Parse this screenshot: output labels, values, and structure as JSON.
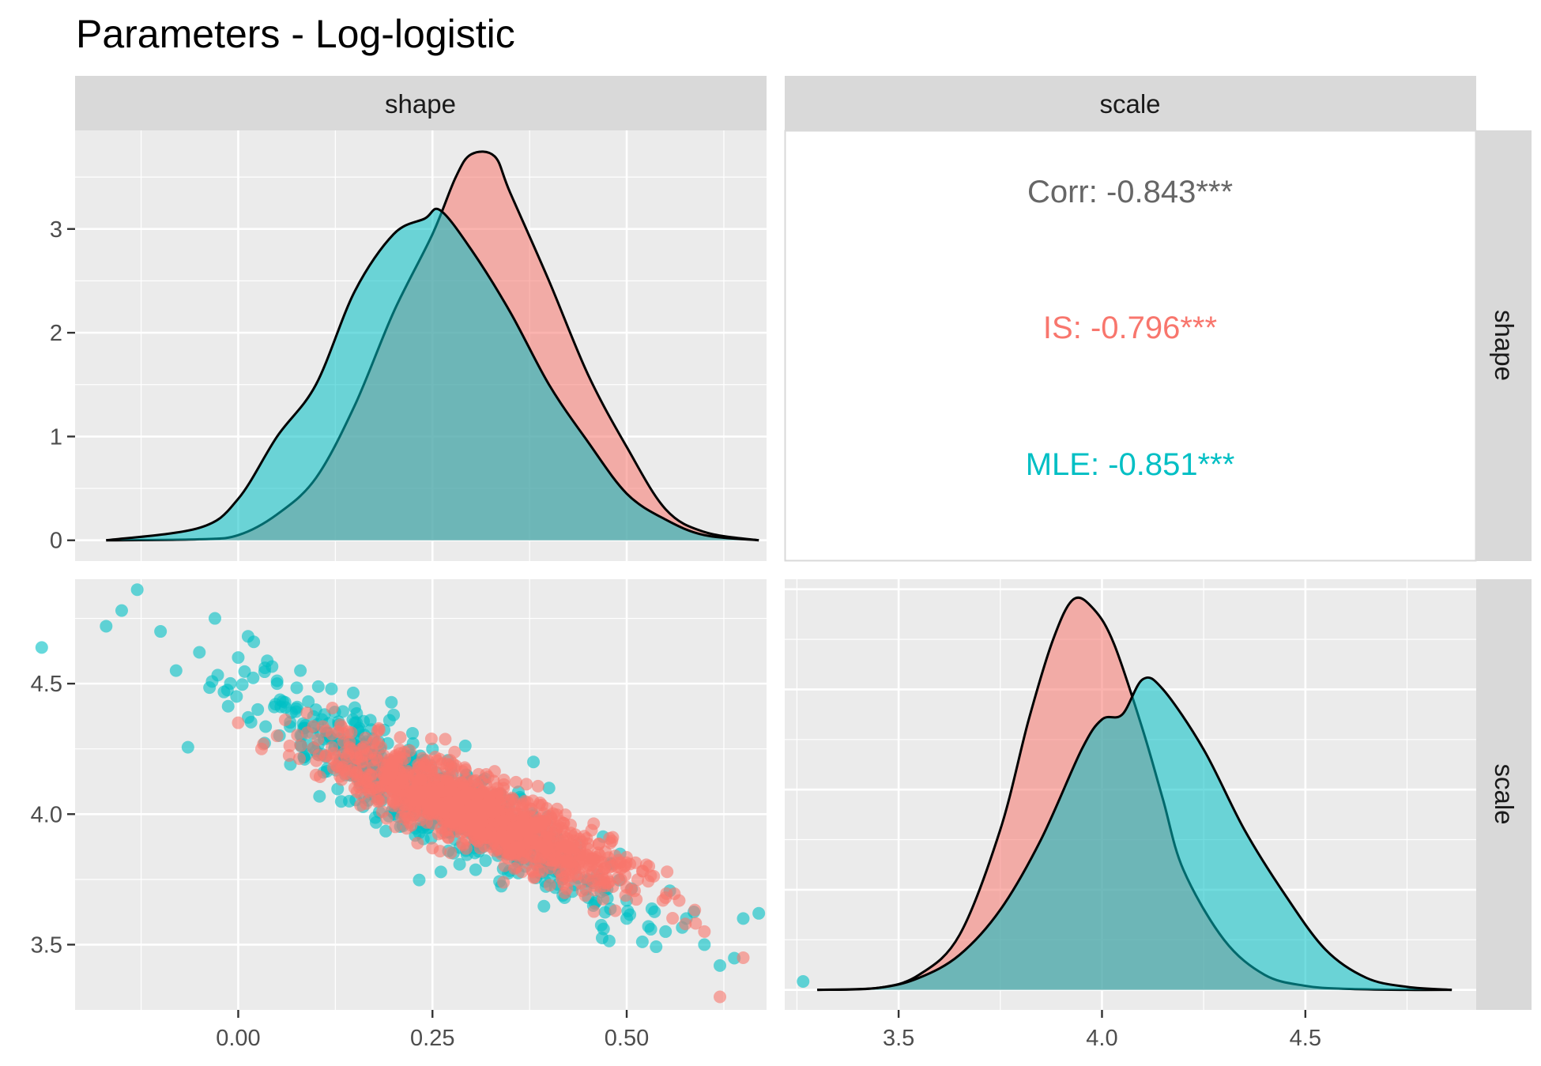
{
  "chart_data": {
    "type": "scatter",
    "title": "Parameters - Log-logistic",
    "variables": [
      "shape",
      "scale"
    ],
    "series": [
      {
        "name": "IS",
        "color": "#F8766D"
      },
      {
        "name": "MLE",
        "color": "#00BFC4"
      }
    ],
    "panels": {
      "shape_density": {
        "type": "area",
        "xlim": [
          -0.21,
          0.68
        ],
        "ylim": [
          -0.2,
          3.95
        ],
        "x_ticks": [
          0.0,
          0.25,
          0.5
        ],
        "x_tick_labels": [
          "0.00",
          "0.25",
          "0.50"
        ],
        "y_ticks": [
          0,
          1,
          2,
          3
        ],
        "y_tick_labels": [
          "0",
          "1",
          "2",
          "3"
        ],
        "series": [
          {
            "name": "IS",
            "x": [
              -0.17,
              -0.05,
              0.0,
              0.05,
              0.1,
              0.15,
              0.2,
              0.25,
              0.28,
              0.3,
              0.33,
              0.35,
              0.4,
              0.45,
              0.5,
              0.55,
              0.6,
              0.67
            ],
            "y": [
              0.0,
              0.01,
              0.05,
              0.25,
              0.6,
              1.3,
              2.2,
              2.95,
              3.5,
              3.72,
              3.7,
              3.35,
              2.5,
              1.6,
              0.9,
              0.3,
              0.08,
              0.0
            ]
          },
          {
            "name": "MLE",
            "x": [
              -0.17,
              -0.05,
              0.0,
              0.05,
              0.1,
              0.15,
              0.2,
              0.24,
              0.26,
              0.3,
              0.35,
              0.4,
              0.45,
              0.5,
              0.55,
              0.6,
              0.67
            ],
            "y": [
              0.0,
              0.12,
              0.4,
              1.0,
              1.5,
              2.4,
              2.95,
              3.1,
              3.18,
              2.8,
              2.2,
              1.5,
              0.95,
              0.45,
              0.2,
              0.05,
              0.0
            ]
          }
        ]
      },
      "correlation": {
        "labels": [
          {
            "name": "Corr",
            "text": "Corr: -0.843***",
            "color": "#666666"
          },
          {
            "name": "IS",
            "text": "IS: -0.796***",
            "color": "#F8766D"
          },
          {
            "name": "MLE",
            "text": "MLE: -0.851***",
            "color": "#00BFC4"
          }
        ]
      },
      "scatter": {
        "xlim": [
          -0.21,
          0.68
        ],
        "ylim": [
          3.25,
          4.9
        ],
        "x_ticks": [
          0.0,
          0.25,
          0.5
        ],
        "x_tick_labels": [
          "0.00",
          "0.25",
          "0.50"
        ],
        "y_ticks": [
          3.5,
          4.0,
          4.5
        ],
        "y_tick_labels": [
          "3.5",
          "4.0",
          "4.5"
        ],
        "trend": {
          "IS": {
            "x_mean": 0.31,
            "y_mean": 4.0,
            "slope": -1.25
          },
          "MLE": {
            "x_mean": 0.26,
            "y_mean": 4.05,
            "slope": -1.55
          }
        },
        "series": [
          {
            "name": "MLE",
            "x": [
              -0.17,
              -0.15,
              -0.13,
              -0.1,
              -0.08,
              -0.05,
              -0.03,
              0.0,
              0.02,
              0.05,
              0.08,
              0.1,
              0.12,
              0.15,
              0.18,
              0.2,
              0.22,
              0.25,
              0.3,
              0.35,
              0.38,
              0.4,
              0.45,
              0.5,
              0.55,
              0.6,
              0.62,
              0.65,
              0.67
            ],
            "y": [
              4.72,
              4.78,
              4.86,
              4.7,
              4.55,
              4.62,
              4.75,
              4.6,
              4.66,
              4.5,
              4.55,
              4.4,
              4.48,
              4.35,
              4.2,
              4.38,
              4.1,
              4.25,
              4.05,
              3.95,
              4.2,
              4.1,
              3.75,
              3.6,
              3.55,
              3.5,
              3.42,
              3.6,
              3.62
            ]
          },
          {
            "name": "IS",
            "x": [
              0.0,
              0.03,
              0.05,
              0.1,
              0.15,
              0.2,
              0.25,
              0.3,
              0.35,
              0.4,
              0.45,
              0.5,
              0.55,
              0.6,
              0.62,
              0.65
            ],
            "y": [
              4.35,
              4.25,
              4.3,
              4.15,
              4.1,
              4.05,
              4.0,
              3.98,
              3.92,
              3.85,
              3.8,
              3.72,
              3.68,
              3.55,
              3.3,
              3.45
            ]
          }
        ]
      },
      "scale_density": {
        "type": "area",
        "xlim": [
          3.22,
          4.92
        ],
        "ylim": [
          -0.2,
          4.1
        ],
        "x_ticks": [
          3.5,
          4.0,
          4.5
        ],
        "x_tick_labels": [
          "3.5",
          "4.0",
          "4.5"
        ],
        "series": [
          {
            "name": "IS",
            "x": [
              3.3,
              3.45,
              3.55,
              3.65,
              3.75,
              3.82,
              3.88,
              3.93,
              3.98,
              4.03,
              4.1,
              4.15,
              4.2,
              4.3,
              4.4,
              4.5,
              4.6,
              4.75,
              4.86
            ],
            "y": [
              0.0,
              0.02,
              0.15,
              0.55,
              1.6,
              2.7,
              3.5,
              3.9,
              3.8,
              3.45,
              2.6,
              1.9,
              1.2,
              0.5,
              0.15,
              0.04,
              0.01,
              0.0,
              0.0
            ]
          },
          {
            "name": "MLE",
            "x": [
              3.3,
              3.45,
              3.55,
              3.65,
              3.75,
              3.85,
              3.95,
              4.0,
              4.05,
              4.1,
              4.15,
              4.25,
              4.35,
              4.45,
              4.55,
              4.65,
              4.75,
              4.86
            ],
            "y": [
              0.0,
              0.02,
              0.12,
              0.35,
              0.8,
              1.5,
              2.4,
              2.7,
              2.75,
              3.1,
              3.0,
              2.4,
              1.6,
              0.95,
              0.4,
              0.12,
              0.03,
              0.0
            ]
          }
        ]
      }
    }
  }
}
